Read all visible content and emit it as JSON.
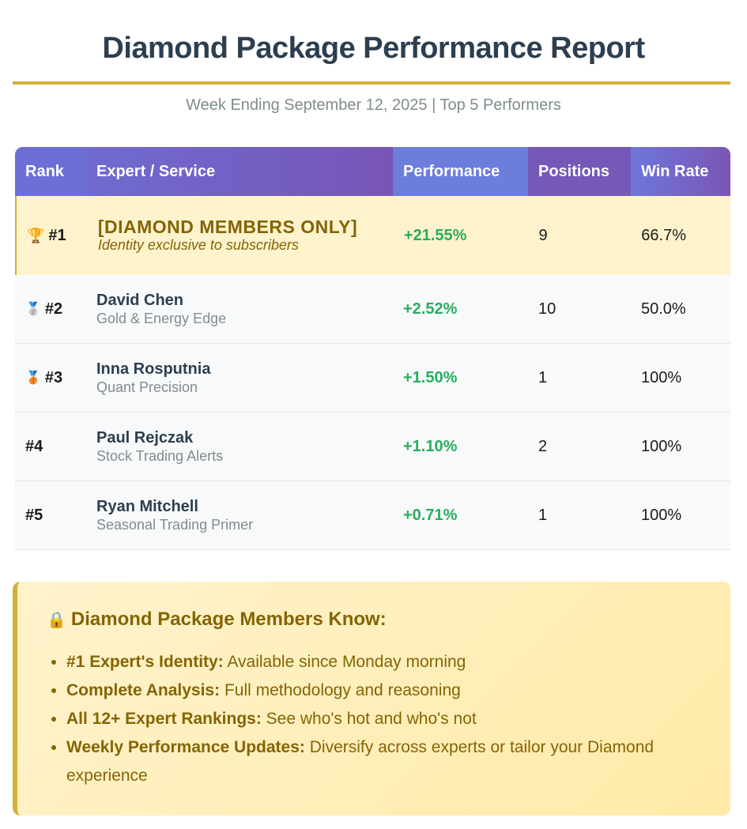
{
  "header": {
    "title": "Diamond Package Performance Report",
    "subtitle": "Week Ending September 12, 2025 | Top 5 Performers"
  },
  "table": {
    "columns": [
      "Rank",
      "Expert / Service",
      "Performance",
      "Positions",
      "Win Rate"
    ],
    "rows": [
      {
        "rank": "#1",
        "icon": "trophy-icon",
        "glyph": "🏆",
        "name": "[DIAMOND MEMBERS ONLY]",
        "service": "Identity exclusive to subscribers",
        "performance": "+21.55%",
        "positions": "9",
        "win_rate": "66.7%"
      },
      {
        "rank": "#2",
        "icon": "silver-medal-icon",
        "glyph": "🥈",
        "name": "David Chen",
        "service": "Gold & Energy Edge",
        "performance": "+2.52%",
        "positions": "10",
        "win_rate": "50.0%"
      },
      {
        "rank": "#3",
        "icon": "bronze-medal-icon",
        "glyph": "🥉",
        "name": "Inna Rosputnia",
        "service": "Quant Precision",
        "performance": "+1.50%",
        "positions": "1",
        "win_rate": "100%"
      },
      {
        "rank": "#4",
        "icon": "",
        "glyph": "",
        "name": "Paul Rejczak",
        "service": "Stock Trading Alerts",
        "performance": "+1.10%",
        "positions": "2",
        "win_rate": "100%"
      },
      {
        "rank": "#5",
        "icon": "",
        "glyph": "",
        "name": "Ryan Mitchell",
        "service": "Seasonal Trading Primer",
        "performance": "+0.71%",
        "positions": "1",
        "win_rate": "100%"
      }
    ]
  },
  "members_box": {
    "icon": "lock-icon",
    "title": "Diamond Package Members Know:",
    "items": [
      {
        "label": "#1 Expert's Identity:",
        "text": " Available since Monday morning"
      },
      {
        "label": "Complete Analysis:",
        "text": " Full methodology and reasoning"
      },
      {
        "label": "All 12+ Expert Rankings:",
        "text": " See who's hot and who's not"
      },
      {
        "label": "Weekly Performance Updates:",
        "text": " Diversify across experts or tailor your Diamond experience"
      }
    ]
  },
  "colors": {
    "accent_gold": "#d4af37",
    "header_purple": "#7158b8",
    "positive_green": "#27ae60",
    "highlight_bg": "#fff3cd",
    "highlight_text": "#856404"
  }
}
